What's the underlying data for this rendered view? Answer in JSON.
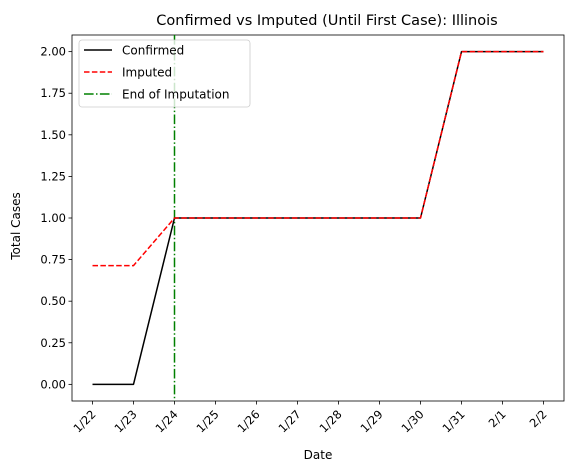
{
  "chart_data": {
    "type": "line",
    "title": "Confirmed vs Imputed (Until First Case): Illinois",
    "xlabel": "Date",
    "ylabel": "Total Cases",
    "categories": [
      "1/22",
      "1/23",
      "1/24",
      "1/25",
      "1/26",
      "1/27",
      "1/28",
      "1/29",
      "1/30",
      "1/31",
      "2/1",
      "2/2"
    ],
    "ylim": [
      -0.1,
      2.1
    ],
    "yticks": [
      "0.00",
      "0.25",
      "0.50",
      "0.75",
      "1.00",
      "1.25",
      "1.50",
      "1.75",
      "2.00"
    ],
    "grid": false,
    "legend_position": "top-left",
    "series": [
      {
        "name": "Confirmed",
        "color": "#000000",
        "style": "solid",
        "values": [
          0,
          0,
          1,
          1,
          1,
          1,
          1,
          1,
          1,
          2,
          2,
          2
        ]
      },
      {
        "name": "Imputed",
        "color": "#ff0000",
        "style": "dashed",
        "values": [
          0.714,
          0.714,
          1,
          1,
          1,
          1,
          1,
          1,
          1,
          2,
          2,
          2
        ]
      }
    ],
    "vline": {
      "name": "End of Imputation",
      "x": "1/24",
      "color": "#008000",
      "style": "dashdot"
    }
  }
}
